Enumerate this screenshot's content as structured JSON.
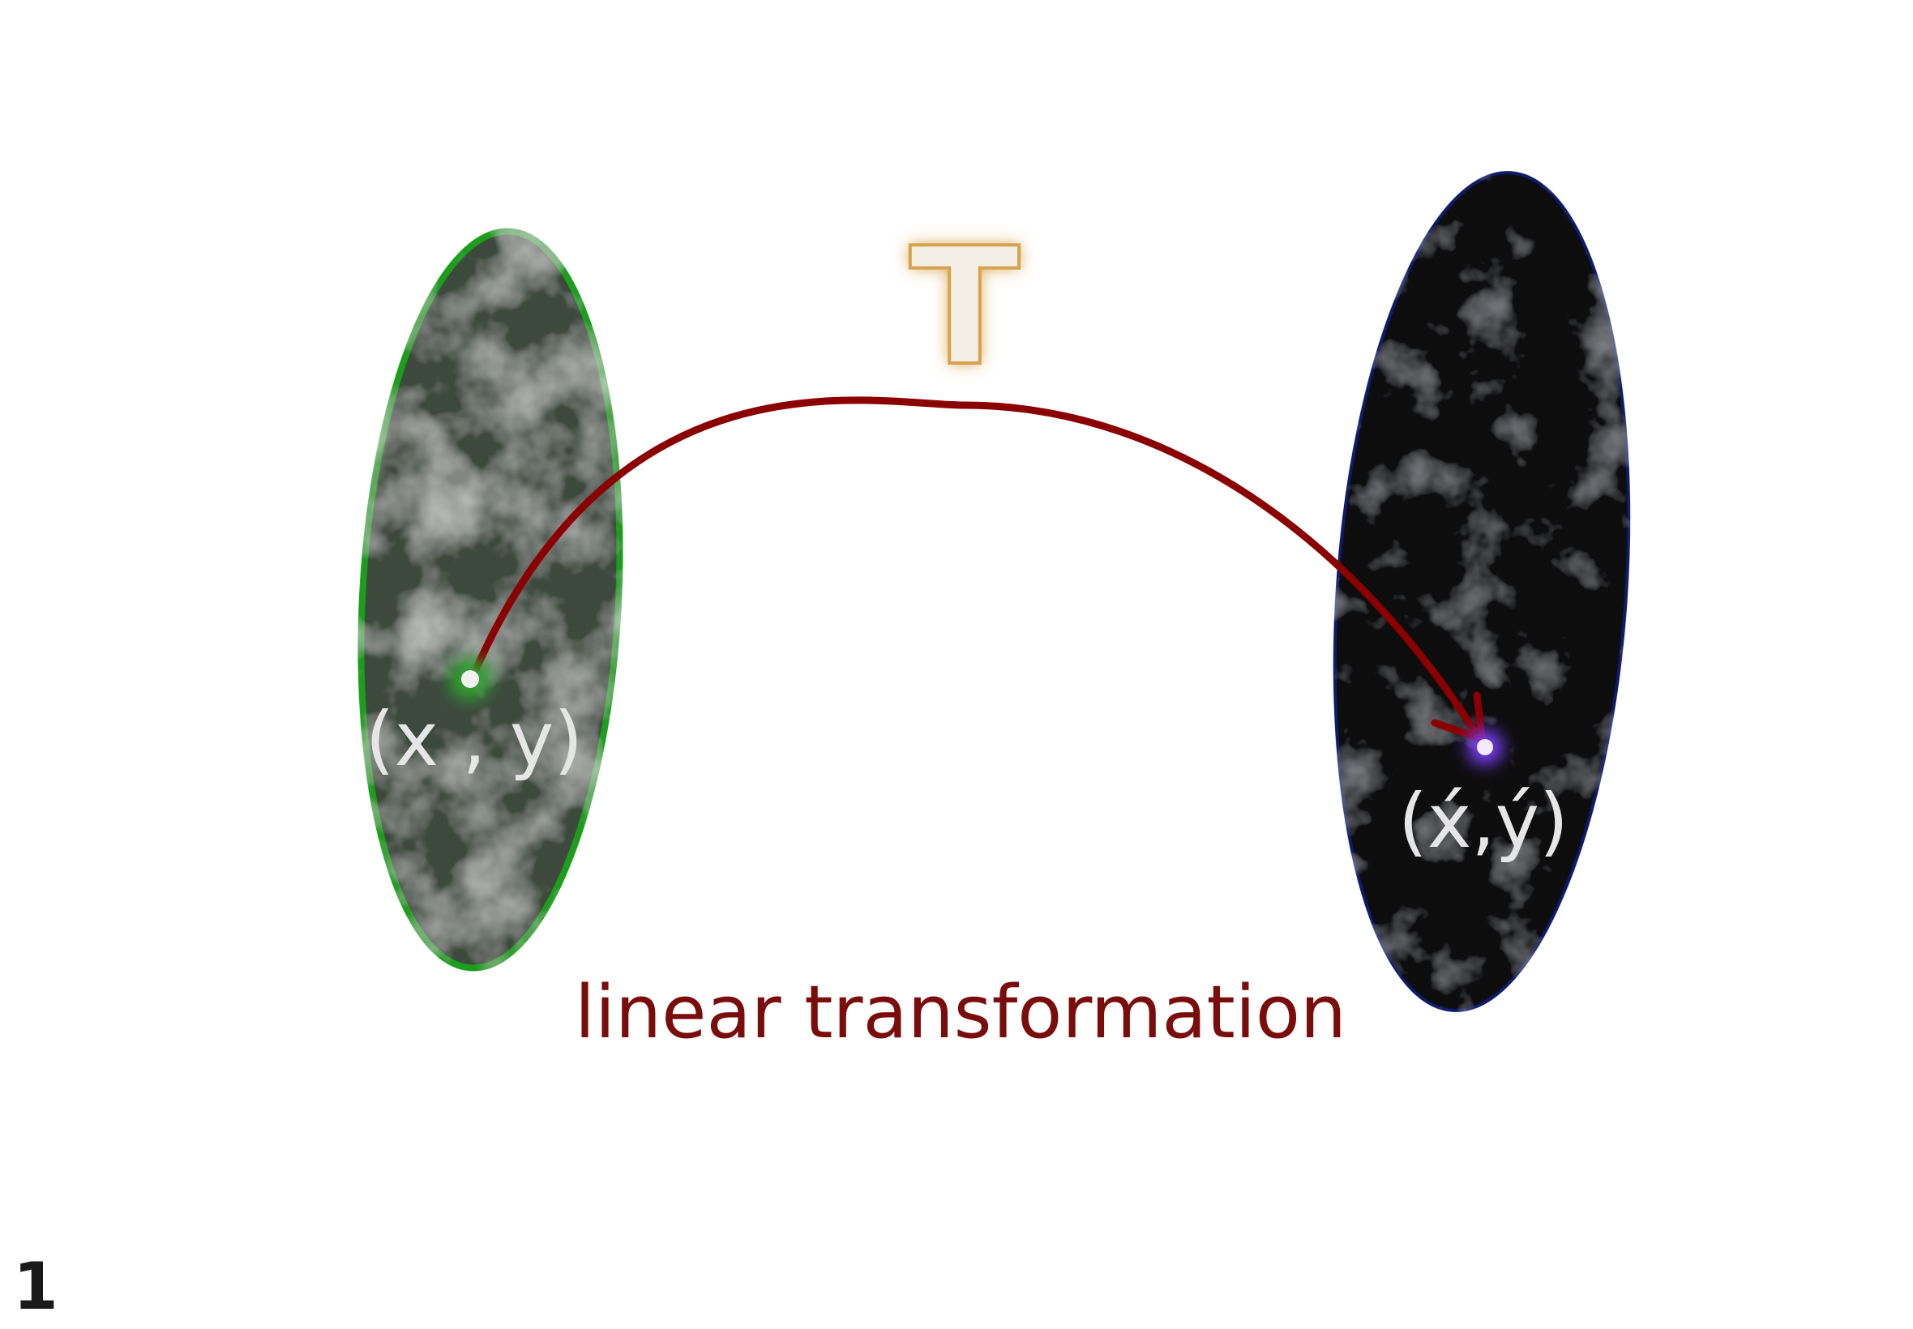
{
  "domain": "Diagram",
  "labels": {
    "transform_symbol": "T",
    "source_point": "(x , y)",
    "target_point": "(x́,ý)",
    "caption": "linear transformation",
    "page_number": "1"
  },
  "colors": {
    "background": "#ffffff",
    "source_fill": "#3c4a3e",
    "source_stroke": "#1f9e1f",
    "target_fill": "#07070e",
    "target_stroke": "#101a6a",
    "arrow": "#8b0000",
    "caption": "#7a0c0c",
    "point_label": "#e6e6e6",
    "symbol_fill": "#f3efe6",
    "symbol_glow": "#d8a24a",
    "source_point_glow": "#2ea32e",
    "target_point_glow": "#7b3cff",
    "page_number": "#1a1a1a"
  }
}
